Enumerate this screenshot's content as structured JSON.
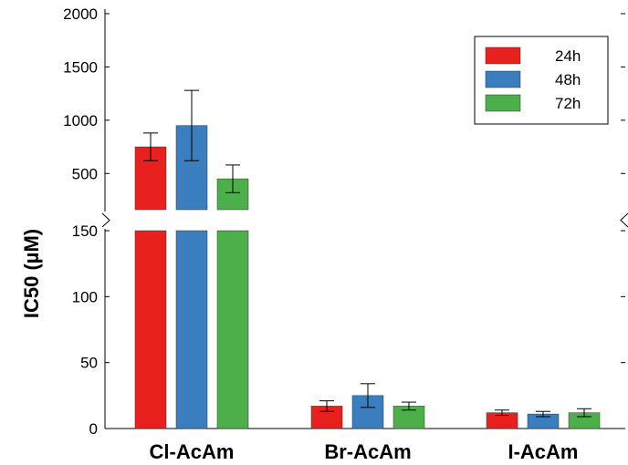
{
  "chart_data": {
    "type": "bar",
    "title": "",
    "xlabel": "",
    "ylabel": "IC50 (µM)",
    "categories": [
      "Cl-AcAm",
      "Br-AcAm",
      "I-AcAm"
    ],
    "series": [
      {
        "name": "24h",
        "color": "#e8201e",
        "values": [
          750,
          17,
          12
        ],
        "errors": [
          130,
          4,
          2
        ]
      },
      {
        "name": "48h",
        "color": "#3a7ebf",
        "values": [
          950,
          25,
          11
        ],
        "errors": [
          330,
          9,
          2
        ]
      },
      {
        "name": "72h",
        "color": "#4daf4a",
        "values": [
          450,
          17,
          12
        ],
        "errors": [
          130,
          3,
          3
        ]
      }
    ],
    "y_axis": {
      "broken": true,
      "lower_segment": {
        "range": [
          0,
          150
        ],
        "ticks": [
          0,
          50,
          100,
          150
        ]
      },
      "upper_segment": {
        "range": [
          160,
          2000
        ],
        "ticks": [
          500,
          1000,
          1500,
          2000
        ]
      }
    },
    "legend": {
      "position": "top-right",
      "entries": [
        "24h",
        "48h",
        "72h"
      ]
    },
    "grid": false
  }
}
